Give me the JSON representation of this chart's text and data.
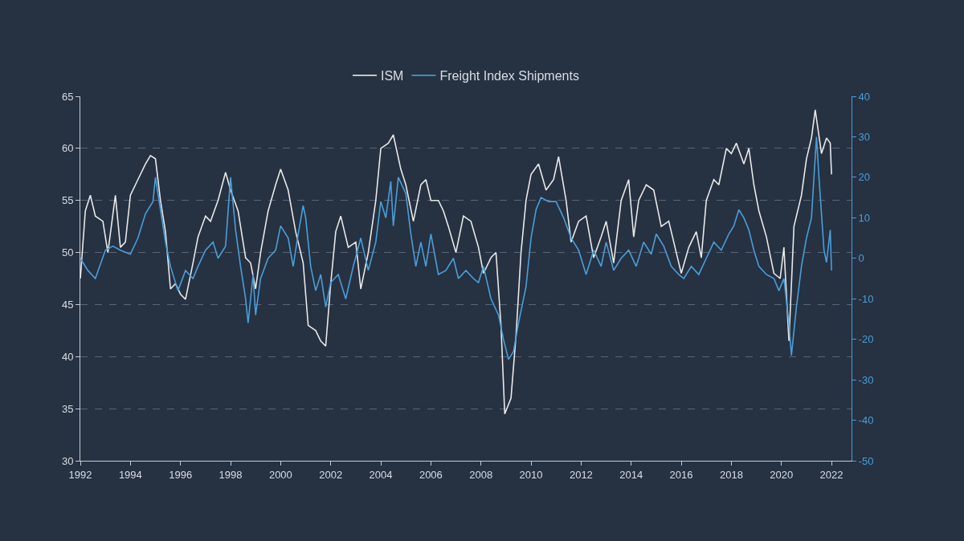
{
  "chart_data": {
    "type": "line",
    "legend": "top",
    "grid": "y",
    "marker": "none",
    "line_style": "solid",
    "xlim": [
      1992,
      2022.8
    ],
    "xticks": [
      1992,
      1994,
      1996,
      1998,
      2000,
      2002,
      2004,
      2006,
      2008,
      2010,
      2012,
      2014,
      2016,
      2018,
      2020,
      2022
    ],
    "ylim": [
      30,
      65
    ],
    "yticks": [
      30,
      35,
      40,
      45,
      50,
      55,
      60,
      65
    ],
    "y2lim": [
      -50,
      40
    ],
    "y2ticks": [
      -50,
      -40,
      -30,
      -20,
      -10,
      0,
      10,
      20,
      30,
      40
    ],
    "series": [
      {
        "name": "ISM",
        "color": "#e8e8e8",
        "x": [
          1992.0,
          1992.2,
          1992.4,
          1992.6,
          1992.9,
          1993.1,
          1993.4,
          1993.6,
          1993.8,
          1994.0,
          1994.3,
          1994.6,
          1994.8,
          1995.0,
          1995.2,
          1995.4,
          1995.6,
          1995.8,
          1996.0,
          1996.2,
          1996.5,
          1996.7,
          1997.0,
          1997.2,
          1997.5,
          1997.8,
          1998.0,
          1998.3,
          1998.6,
          1998.8,
          1999.0,
          1999.2,
          1999.5,
          1999.8,
          2000.0,
          2000.3,
          2000.6,
          2000.9,
          2001.1,
          2001.4,
          2001.6,
          2001.8,
          2002.0,
          2002.2,
          2002.4,
          2002.7,
          2003.0,
          2003.2,
          2003.5,
          2003.8,
          2004.0,
          2004.3,
          2004.5,
          2004.8,
          2005.0,
          2005.3,
          2005.6,
          2005.8,
          2006.0,
          2006.3,
          2006.5,
          2006.7,
          2007.0,
          2007.3,
          2007.6,
          2007.9,
          2008.1,
          2008.4,
          2008.6,
          2008.8,
          2008.95,
          2009.2,
          2009.4,
          2009.6,
          2009.8,
          2010.0,
          2010.3,
          2010.6,
          2010.9,
          2011.1,
          2011.4,
          2011.6,
          2011.9,
          2012.2,
          2012.5,
          2012.8,
          2013.0,
          2013.3,
          2013.6,
          2013.9,
          2014.1,
          2014.3,
          2014.6,
          2014.9,
          2015.2,
          2015.5,
          2015.8,
          2016.0,
          2016.3,
          2016.6,
          2016.8,
          2017.0,
          2017.3,
          2017.5,
          2017.8,
          2018.0,
          2018.2,
          2018.5,
          2018.7,
          2018.9,
          2019.1,
          2019.4,
          2019.7,
          2019.95,
          2020.1,
          2020.3,
          2020.5,
          2020.8,
          2021.0,
          2021.2,
          2021.35,
          2021.6,
          2021.8,
          2021.95,
          2022.0
        ],
        "values": [
          47.5,
          54,
          55.5,
          53.5,
          53,
          50,
          55.5,
          50.5,
          51,
          55.5,
          57,
          58.5,
          59.3,
          59,
          55,
          52,
          46.5,
          47,
          46,
          45.5,
          49,
          51.5,
          53.5,
          53,
          55,
          57.7,
          56,
          54,
          49.5,
          49,
          46.5,
          50,
          54,
          56.5,
          58,
          56,
          52,
          49,
          43,
          42.5,
          41.5,
          41,
          47,
          52,
          53.5,
          50.5,
          51,
          46.5,
          50,
          55,
          60,
          60.5,
          61.3,
          58,
          56.5,
          53,
          56.5,
          57,
          55,
          55,
          54,
          52.5,
          50,
          53.5,
          53,
          50.5,
          48,
          49.5,
          50,
          43,
          34.5,
          36,
          42,
          50,
          55,
          57.5,
          58.5,
          56,
          57,
          59.2,
          55,
          51,
          53,
          53.5,
          49.5,
          51.5,
          53,
          49,
          55,
          57,
          51.5,
          55,
          56.5,
          56,
          52.5,
          53,
          50,
          48,
          50.5,
          52,
          49.5,
          55,
          57,
          56.5,
          60,
          59.5,
          60.5,
          58.5,
          60,
          56.5,
          54,
          51.5,
          48,
          47.5,
          50.5,
          41.5,
          52.5,
          55.5,
          59,
          61,
          63.7,
          59.5,
          61,
          60.5,
          57.5
        ]
      },
      {
        "name": "Freight Index Shipments",
        "color": "#4a9fd8",
        "axis": "y2",
        "x": [
          1992.0,
          1992.3,
          1992.6,
          1993.0,
          1993.3,
          1993.6,
          1994.0,
          1994.3,
          1994.6,
          1994.9,
          1995.0,
          1995.2,
          1995.4,
          1995.6,
          1995.9,
          1996.2,
          1996.5,
          1996.7,
          1997.0,
          1997.3,
          1997.5,
          1997.8,
          1998.0,
          1998.2,
          1998.4,
          1998.6,
          1998.7,
          1998.9,
          1999.0,
          1999.2,
          1999.5,
          1999.8,
          2000.0,
          2000.3,
          2000.5,
          2000.7,
          2000.9,
          2001.0,
          2001.2,
          2001.4,
          2001.6,
          2001.8,
          2002.0,
          2002.3,
          2002.6,
          2002.9,
          2003.2,
          2003.5,
          2003.8,
          2004.0,
          2004.2,
          2004.4,
          2004.5,
          2004.7,
          2005.0,
          2005.2,
          2005.4,
          2005.6,
          2005.8,
          2006.0,
          2006.3,
          2006.6,
          2006.9,
          2007.1,
          2007.4,
          2007.7,
          2007.9,
          2008.1,
          2008.4,
          2008.7,
          2008.9,
          2009.1,
          2009.3,
          2009.5,
          2009.8,
          2010.0,
          2010.2,
          2010.4,
          2010.7,
          2011.0,
          2011.3,
          2011.6,
          2011.9,
          2012.2,
          2012.5,
          2012.8,
          2013.0,
          2013.3,
          2013.6,
          2013.9,
          2014.2,
          2014.5,
          2014.8,
          2015.0,
          2015.3,
          2015.6,
          2015.9,
          2016.1,
          2016.4,
          2016.7,
          2017.0,
          2017.3,
          2017.6,
          2017.9,
          2018.1,
          2018.3,
          2018.5,
          2018.7,
          2018.9,
          2019.1,
          2019.4,
          2019.7,
          2019.9,
          2020.1,
          2020.3,
          2020.4,
          2020.6,
          2020.8,
          2021.0,
          2021.2,
          2021.4,
          2021.5,
          2021.7,
          2021.8,
          2021.95,
          2022.0
        ],
        "values": [
          0,
          -3,
          -5,
          2,
          3,
          2,
          1,
          5,
          11,
          14,
          20,
          12,
          4,
          -2,
          -8,
          -3,
          -5,
          -2,
          2,
          4,
          0,
          3,
          20,
          7,
          -2,
          -10,
          -16,
          -4,
          -14,
          -5,
          0,
          2,
          8,
          5,
          -2,
          6,
          13,
          10,
          -2,
          -8,
          -4,
          -12,
          -6,
          -4,
          -10,
          -2,
          5,
          -3,
          4,
          14,
          10,
          19,
          8,
          20,
          16,
          6,
          -2,
          4,
          -2,
          6,
          -4,
          -3,
          0,
          -5,
          -3,
          -5,
          -6,
          -2,
          -10,
          -14,
          -20,
          -25,
          -23,
          -16,
          -7,
          5,
          12,
          15,
          14,
          14,
          10,
          5,
          2,
          -4,
          2,
          -2,
          4,
          -3,
          0,
          2,
          -2,
          4,
          1,
          6,
          3,
          -2,
          -4,
          -5,
          -2,
          -4,
          0,
          4,
          2,
          6,
          8,
          12,
          10,
          7,
          2,
          -2,
          -4,
          -5,
          -8,
          -5,
          -16,
          -24,
          -12,
          -2,
          5,
          10,
          30,
          20,
          2,
          -1,
          7,
          -3
        ]
      }
    ]
  }
}
